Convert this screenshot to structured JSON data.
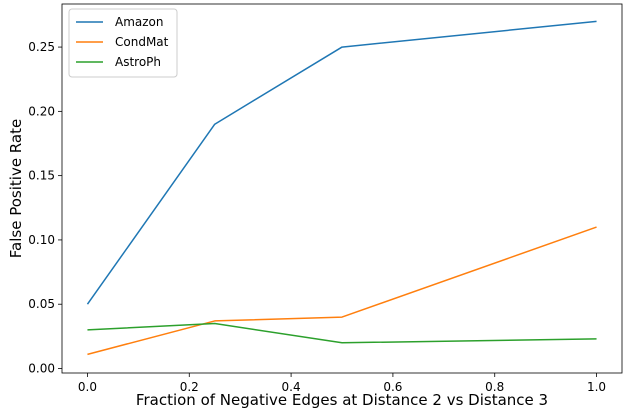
{
  "chart_data": {
    "type": "line",
    "xlabel": "Fraction of Negative Edges at Distance 2 vs Distance 3",
    "ylabel": "False Positive Rate",
    "x": [
      0.0,
      0.25,
      0.5,
      1.0
    ],
    "xlim": [
      -0.05,
      1.05
    ],
    "ylim": [
      -0.0035,
      0.2835
    ],
    "xticks": [
      0.0,
      0.2,
      0.4,
      0.6,
      0.8,
      1.0
    ],
    "xtick_labels": [
      "0.0",
      "0.2",
      "0.4",
      "0.6",
      "0.8",
      "1.0"
    ],
    "yticks": [
      0.0,
      0.05,
      0.1,
      0.15,
      0.2,
      0.25
    ],
    "ytick_labels": [
      "0.00",
      "0.05",
      "0.10",
      "0.15",
      "0.20",
      "0.25"
    ],
    "grid": false,
    "legend_position": "top-left",
    "series": [
      {
        "name": "Amazon",
        "color": "#1f77b4",
        "values": [
          0.05,
          0.19,
          0.25,
          0.27
        ]
      },
      {
        "name": "CondMat",
        "color": "#ff7f0e",
        "values": [
          0.011,
          0.037,
          0.04,
          0.11
        ]
      },
      {
        "name": "AstroPh",
        "color": "#2ca02c",
        "values": [
          0.03,
          0.035,
          0.02,
          0.023
        ]
      }
    ]
  }
}
